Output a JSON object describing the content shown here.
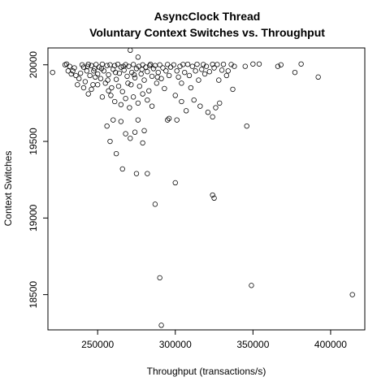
{
  "chart_data": {
    "type": "scatter",
    "title": "AsyncClock Thread",
    "subtitle": "Voluntary Context Switches vs. Throughput",
    "xlabel": "Throughput (transactions/s)",
    "ylabel": "Context Switches",
    "xlim": [
      218000,
      422000
    ],
    "ylim": [
      18270,
      20110
    ],
    "x_ticks": [
      250000,
      300000,
      350000,
      400000
    ],
    "x_tick_labels": [
      "250000",
      "300000",
      "350000",
      "400000"
    ],
    "y_ticks": [
      18500,
      19000,
      19500,
      20000
    ],
    "y_tick_labels": [
      "18500",
      "19000",
      "19500",
      "20000"
    ],
    "grid": false,
    "marker": "open-circle",
    "points": [
      [
        271000,
        20095
      ],
      [
        276000,
        20050
      ],
      [
        221000,
        19950
      ],
      [
        230000,
        20005
      ],
      [
        232000,
        19990
      ],
      [
        234000,
        19960
      ],
      [
        236000,
        19930
      ],
      [
        238000,
        19910
      ],
      [
        240000,
        20000
      ],
      [
        241000,
        19985
      ],
      [
        242000,
        19890
      ],
      [
        243000,
        19960
      ],
      [
        244000,
        20003
      ],
      [
        245000,
        19930
      ],
      [
        246000,
        19995
      ],
      [
        247000,
        19870
      ],
      [
        248000,
        19975
      ],
      [
        249000,
        20002
      ],
      [
        250000,
        19940
      ],
      [
        251000,
        19985
      ],
      [
        252000,
        19910
      ],
      [
        253000,
        20004
      ],
      [
        254000,
        19960
      ],
      [
        255000,
        19880
      ],
      [
        256000,
        19995
      ],
      [
        257000,
        19935
      ],
      [
        258000,
        20000
      ],
      [
        259000,
        19850
      ],
      [
        260000,
        19970
      ],
      [
        261000,
        19995
      ],
      [
        262000,
        19905
      ],
      [
        263000,
        20003
      ],
      [
        264000,
        19945
      ],
      [
        265000,
        19985
      ],
      [
        266000,
        19825
      ],
      [
        267000,
        19965
      ],
      [
        268000,
        20001
      ],
      [
        269000,
        19925
      ],
      [
        270000,
        19990
      ],
      [
        271500,
        19870
      ],
      [
        272000,
        19950
      ],
      [
        273000,
        20002
      ],
      [
        274000,
        19915
      ],
      [
        275000,
        19975
      ],
      [
        276500,
        19990
      ],
      [
        277000,
        19860
      ],
      [
        278000,
        19940
      ],
      [
        279000,
        20000
      ],
      [
        280000,
        19900
      ],
      [
        281000,
        19985
      ],
      [
        282000,
        19955
      ],
      [
        283000,
        19830
      ],
      [
        284000,
        20003
      ],
      [
        285000,
        19925
      ],
      [
        286000,
        19975
      ],
      [
        287000,
        19995
      ],
      [
        288000,
        19880
      ],
      [
        289000,
        19950
      ],
      [
        290000,
        20000
      ],
      [
        291000,
        19910
      ],
      [
        292000,
        19980
      ],
      [
        293000,
        19845
      ],
      [
        294000,
        19960
      ],
      [
        295000,
        20002
      ],
      [
        296000,
        19930
      ],
      [
        297000,
        19985
      ],
      [
        235000,
        19980
      ],
      [
        239000,
        19945
      ],
      [
        248500,
        19920
      ],
      [
        252500,
        19975
      ],
      [
        256500,
        19900
      ],
      [
        261500,
        19950
      ],
      [
        266500,
        19990
      ],
      [
        269500,
        19880
      ],
      [
        273500,
        19935
      ],
      [
        278500,
        19970
      ],
      [
        283500,
        19995
      ],
      [
        288500,
        19920
      ],
      [
        263500,
        19860
      ],
      [
        258500,
        19800
      ],
      [
        261000,
        19760
      ],
      [
        265000,
        19740
      ],
      [
        268000,
        19780
      ],
      [
        270500,
        19720
      ],
      [
        273000,
        19790
      ],
      [
        276000,
        19750
      ],
      [
        279000,
        19810
      ],
      [
        282000,
        19770
      ],
      [
        285000,
        19730
      ],
      [
        253000,
        19790
      ],
      [
        257000,
        19830
      ],
      [
        250000,
        19870
      ],
      [
        246000,
        19840
      ],
      [
        244000,
        19810
      ],
      [
        241000,
        19850
      ],
      [
        237000,
        19870
      ],
      [
        233000,
        19940
      ],
      [
        229000,
        20000
      ],
      [
        231000,
        19960
      ],
      [
        243500,
        19990
      ],
      [
        247500,
        19960
      ],
      [
        299000,
        20000
      ],
      [
        301000,
        19960
      ],
      [
        302000,
        19920
      ],
      [
        303000,
        19990
      ],
      [
        304000,
        19880
      ],
      [
        305000,
        20002
      ],
      [
        306000,
        19950
      ],
      [
        308000,
        20003
      ],
      [
        309000,
        19930
      ],
      [
        310000,
        19850
      ],
      [
        311000,
        19990
      ],
      [
        313000,
        19960
      ],
      [
        314000,
        20003
      ],
      [
        315000,
        19900
      ],
      [
        317000,
        19970
      ],
      [
        318000,
        20002
      ],
      [
        319000,
        19940
      ],
      [
        320000,
        19990
      ],
      [
        322000,
        19955
      ],
      [
        324000,
        20003
      ],
      [
        325000,
        19980
      ],
      [
        327000,
        20002
      ],
      [
        328000,
        19900
      ],
      [
        330000,
        19965
      ],
      [
        331000,
        20003
      ],
      [
        333000,
        19930
      ],
      [
        334000,
        19960
      ],
      [
        336000,
        20002
      ],
      [
        337000,
        19840
      ],
      [
        338000,
        19990
      ],
      [
        300000,
        19800
      ],
      [
        304000,
        19760
      ],
      [
        307000,
        19700
      ],
      [
        312000,
        19770
      ],
      [
        316000,
        19730
      ],
      [
        321000,
        19690
      ],
      [
        324000,
        19660
      ],
      [
        326000,
        19720
      ],
      [
        328500,
        19750
      ],
      [
        301000,
        19640
      ],
      [
        256000,
        19600
      ],
      [
        260000,
        19640
      ],
      [
        265000,
        19630
      ],
      [
        258000,
        19500
      ],
      [
        262000,
        19420
      ],
      [
        266000,
        19320
      ],
      [
        268000,
        19550
      ],
      [
        271000,
        19520
      ],
      [
        274000,
        19560
      ],
      [
        276000,
        19640
      ],
      [
        279000,
        19490
      ],
      [
        280000,
        19570
      ],
      [
        295000,
        19640
      ],
      [
        296000,
        19650
      ],
      [
        275000,
        19290
      ],
      [
        282000,
        19290
      ],
      [
        300000,
        19230
      ],
      [
        324000,
        19150
      ],
      [
        325000,
        19130
      ],
      [
        287000,
        19090
      ],
      [
        345000,
        19990
      ],
      [
        346000,
        19600
      ],
      [
        350000,
        20005
      ],
      [
        354000,
        20005
      ],
      [
        366000,
        19990
      ],
      [
        368000,
        20000
      ],
      [
        377000,
        19950
      ],
      [
        381000,
        20005
      ],
      [
        392000,
        19920
      ],
      [
        290000,
        18610
      ],
      [
        349000,
        18560
      ],
      [
        414000,
        18500
      ],
      [
        291000,
        18300
      ]
    ]
  }
}
